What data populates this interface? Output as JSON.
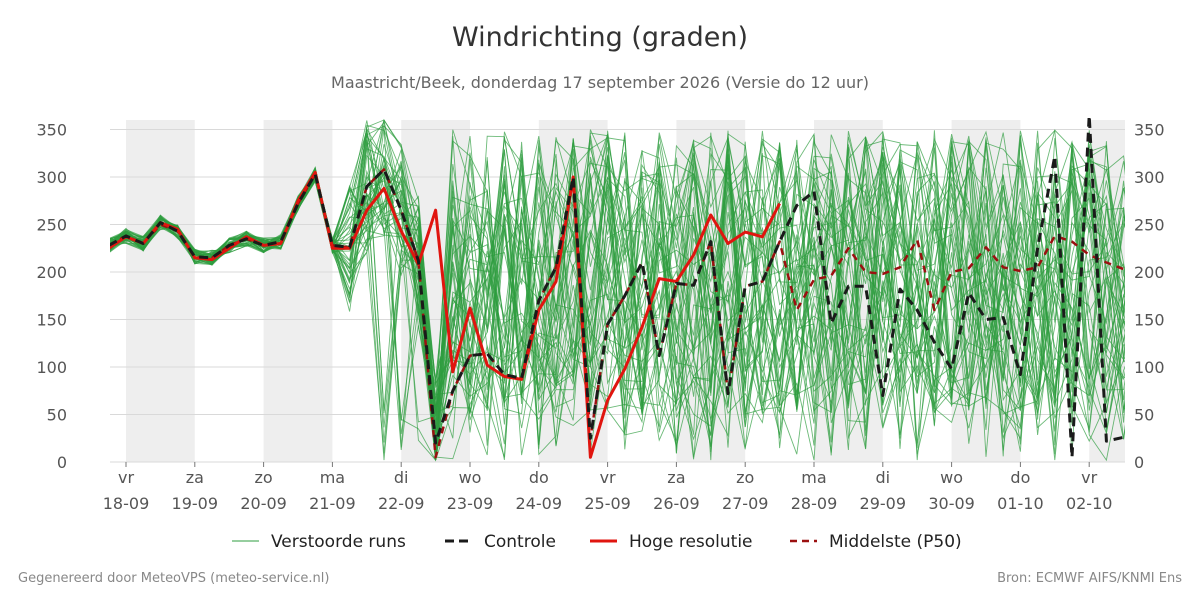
{
  "header": {
    "title": "Windrichting (graden)",
    "subtitle": "Maastricht/Beek, donderdag 17 september 2026 (Versie do 12 uur)"
  },
  "footer": {
    "left": "Gegenereerd door MeteoVPS (meteo-service.nl)",
    "right": "Bron: ECMWF AIFS/KNMI Ens"
  },
  "chart_data": {
    "type": "line",
    "title": "Windrichting (graden)",
    "ylim": [
      0,
      360
    ],
    "yticks": [
      0,
      50,
      100,
      150,
      200,
      250,
      300,
      350
    ],
    "grid": true,
    "legend_position": "bottom",
    "x_start": "2026-09-17 18:00",
    "x_step_hours": 6,
    "x_tick_days": [
      {
        "day": "vr",
        "date": "18-09"
      },
      {
        "day": "za",
        "date": "19-09"
      },
      {
        "day": "zo",
        "date": "20-09"
      },
      {
        "day": "ma",
        "date": "21-09"
      },
      {
        "day": "di",
        "date": "22-09"
      },
      {
        "day": "wo",
        "date": "23-09"
      },
      {
        "day": "do",
        "date": "24-09"
      },
      {
        "day": "vr",
        "date": "25-09"
      },
      {
        "day": "za",
        "date": "26-09"
      },
      {
        "day": "zo",
        "date": "27-09"
      },
      {
        "day": "ma",
        "date": "28-09"
      },
      {
        "day": "di",
        "date": "29-09"
      },
      {
        "day": "wo",
        "date": "30-09"
      },
      {
        "day": "do",
        "date": "01-10"
      },
      {
        "day": "vr",
        "date": "02-10"
      }
    ],
    "series": [
      {
        "name": "Controle",
        "color": "#1a1a1a",
        "style": "dashed",
        "values": [
          228,
          238,
          230,
          252,
          243,
          216,
          215,
          228,
          235,
          228,
          232,
          272,
          303,
          228,
          226,
          290,
          308,
          265,
          212,
          20,
          75,
          112,
          114,
          92,
          88,
          170,
          205,
          300,
          25,
          145,
          175,
          210,
          112,
          188,
          186,
          232,
          72,
          185,
          190,
          232,
          270,
          285,
          146,
          185,
          185,
          70,
          182,
          160,
          126,
          98,
          178,
          150,
          152,
          92,
          225,
          322,
          5,
          365,
          22,
          26,
          26
        ]
      },
      {
        "name": "Hoge resolutie",
        "color": "#e0150f",
        "style": "solid",
        "values": [
          225,
          237,
          230,
          252,
          245,
          215,
          213,
          225,
          237,
          228,
          230,
          275,
          305,
          225,
          225,
          265,
          288,
          243,
          208,
          265,
          95,
          162,
          102,
          90,
          87,
          160,
          190,
          300,
          5,
          65,
          98,
          142,
          193,
          190,
          218,
          260,
          230,
          242,
          237,
          272
        ]
      },
      {
        "name": "Middelste (P50)",
        "color": "#9b1010",
        "style": "dashed",
        "values": [
          228,
          238,
          230,
          250,
          243,
          216,
          215,
          228,
          235,
          228,
          232,
          272,
          303,
          228,
          226,
          290,
          308,
          265,
          212,
          5,
          75,
          112,
          114,
          92,
          88,
          170,
          205,
          300,
          25,
          145,
          175,
          210,
          112,
          188,
          186,
          232,
          72,
          185,
          190,
          232,
          160,
          192,
          196,
          225,
          200,
          198,
          205,
          234,
          160,
          200,
          204,
          226,
          205,
          201,
          205,
          238,
          232,
          218,
          210,
          203,
          240
        ]
      }
    ],
    "ensemble": {
      "name": "Verstoorde runs",
      "color": "#2e9c3f",
      "members": 50,
      "spread_note": "spread increases after 21-09"
    }
  }
}
